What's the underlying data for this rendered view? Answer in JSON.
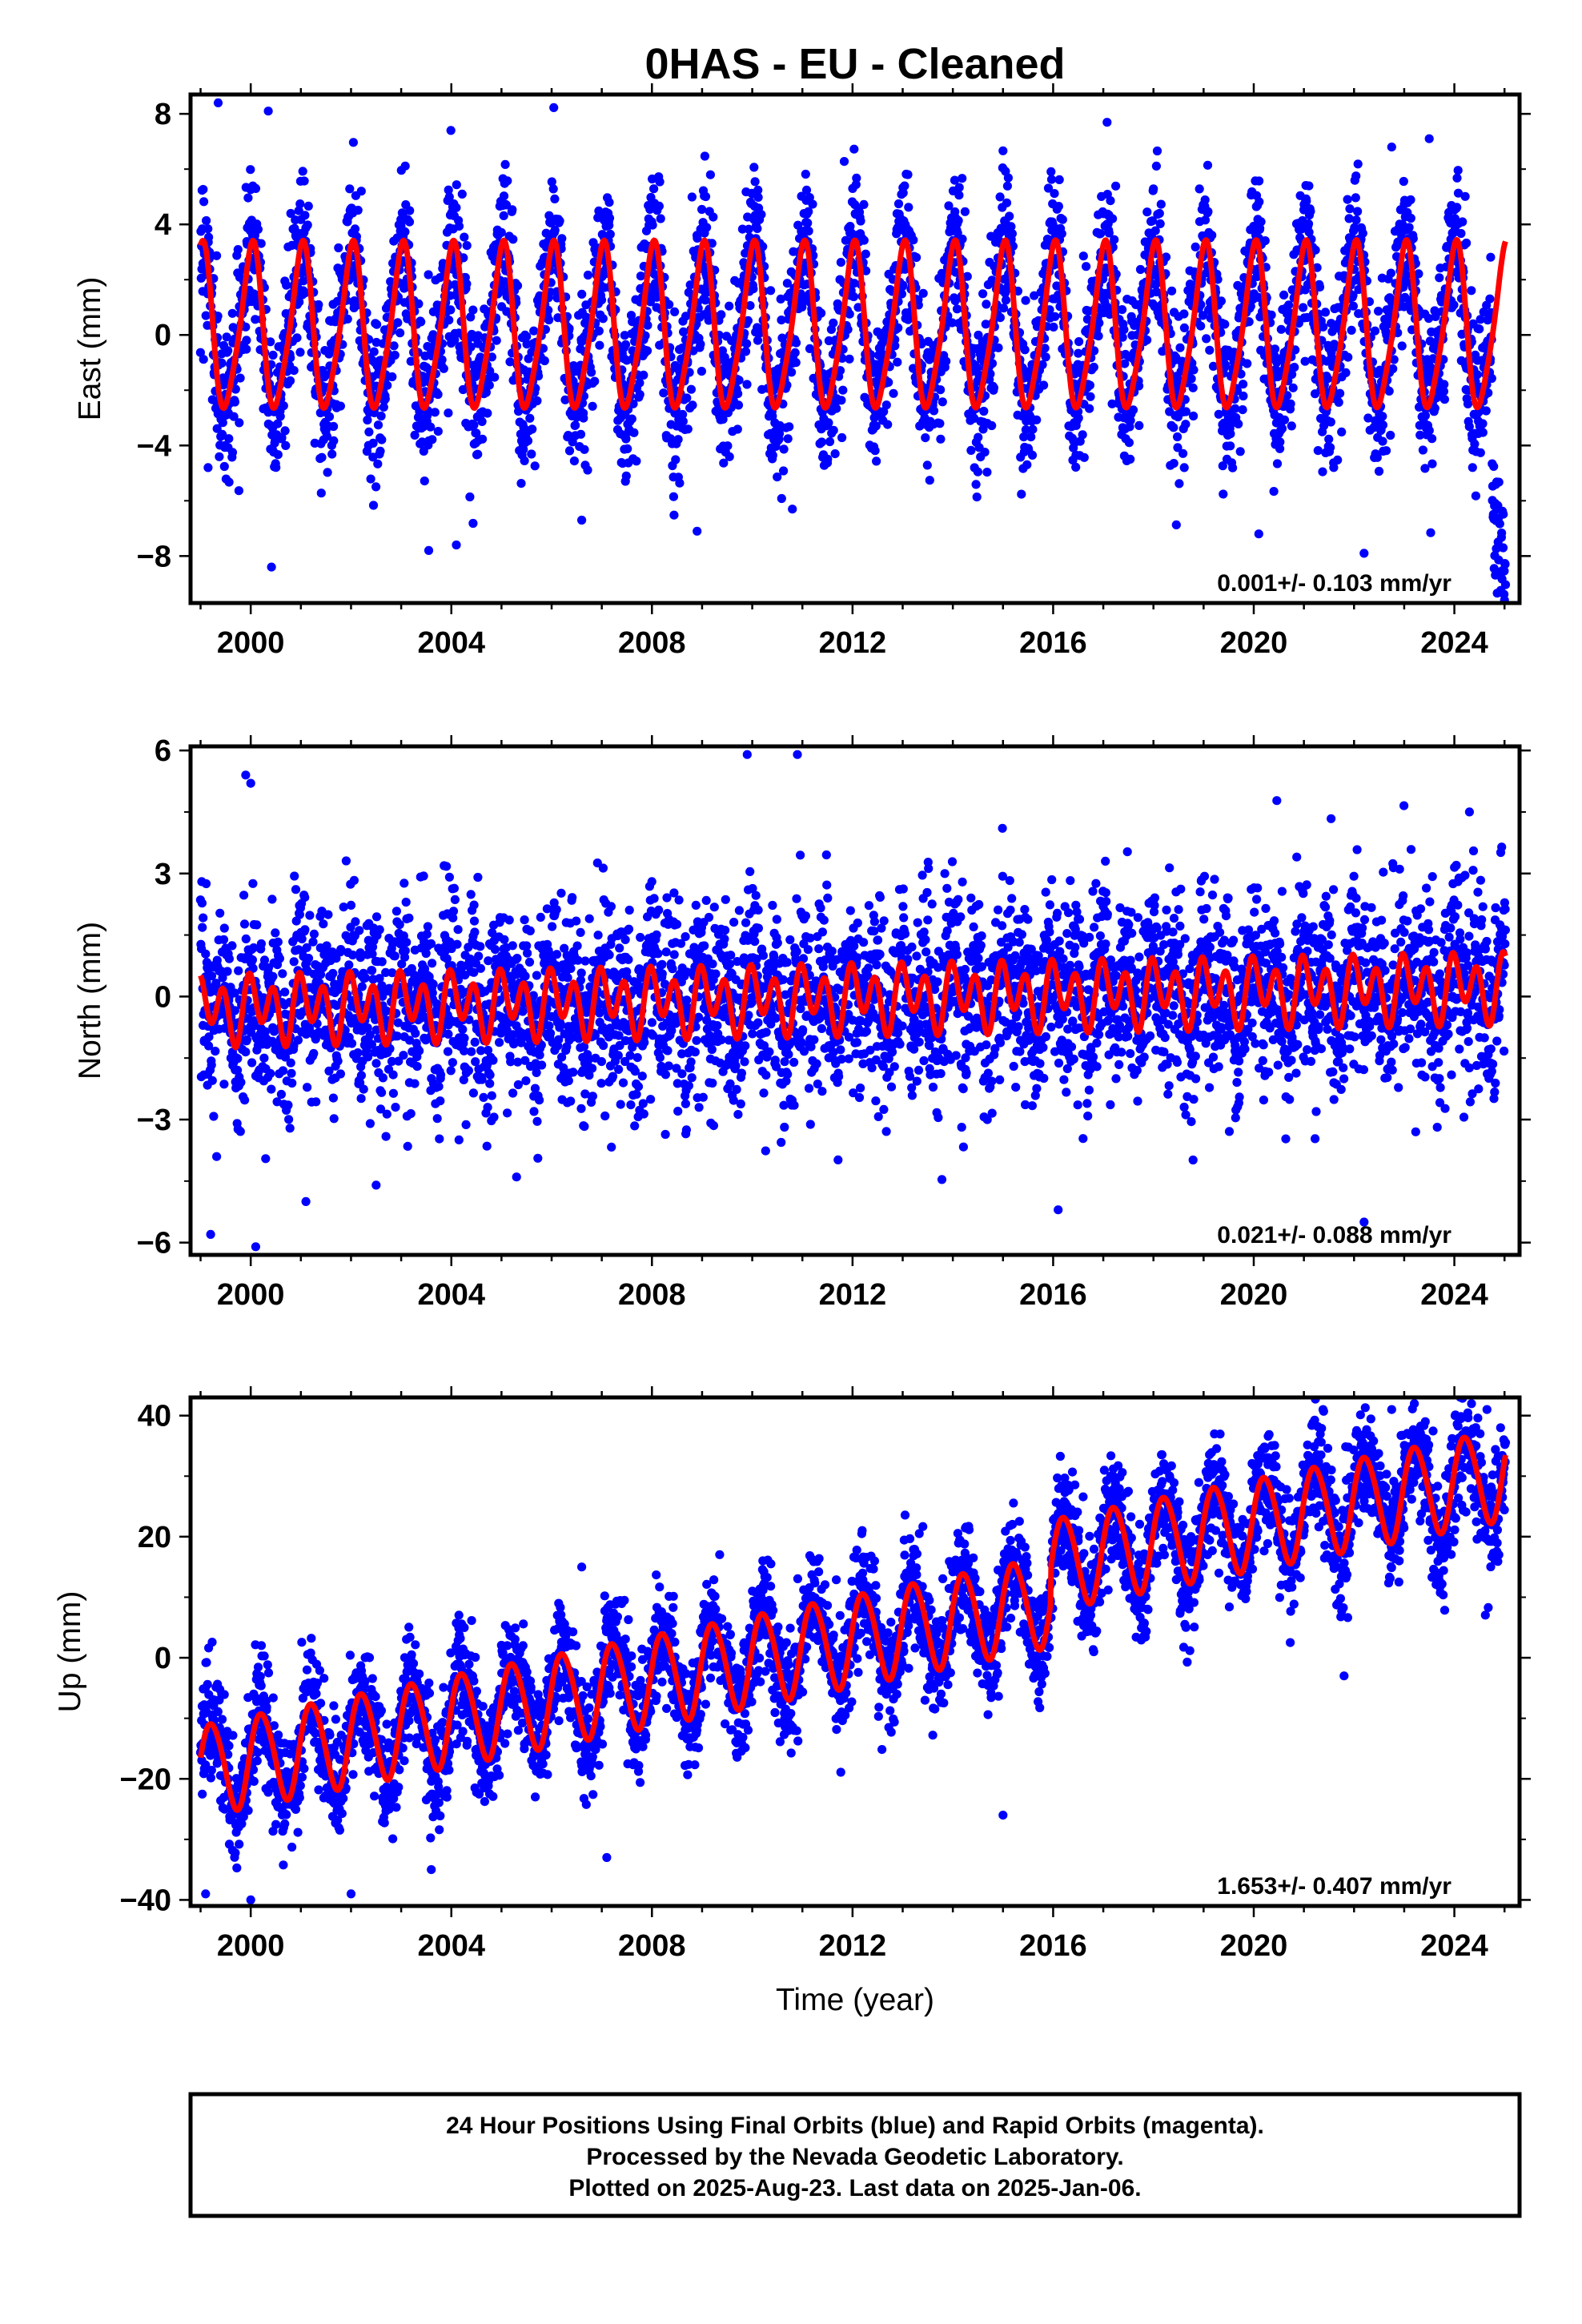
{
  "title": "0HAS  - EU - Cleaned",
  "x_axis_label": "Time (year)",
  "footer": {
    "line1": "24 Hour Positions Using Final Orbits (blue) and Rapid Orbits (magenta).",
    "line2": "Processed by the Nevada Geodetic Laboratory.",
    "line3": "Plotted on 2025-Aug-23. Last data on 2025-Jan-06."
  },
  "colors": {
    "observations": "#0000ff",
    "model": "#ff0000",
    "frame": "#000000"
  },
  "chart_data": [
    {
      "type": "scatter",
      "ylabel": "East (mm)",
      "xlim": [
        1998.8,
        2025.3
      ],
      "ylim": [
        -9.7,
        8.7
      ],
      "xticks": [
        2000,
        2004,
        2008,
        2012,
        2016,
        2020,
        2024
      ],
      "yticks": [
        -8,
        -4,
        0,
        4,
        8
      ],
      "tick_labels_y": [
        "−8",
        "−4",
        "0",
        "4",
        "8"
      ],
      "rate": "0.001+/- 0.103 mm/yr",
      "time_span": [
        1999.0,
        2025.02
      ],
      "model": {
        "offset": 0.2,
        "trend": 0.001,
        "annual_amp": 2.9,
        "annual_phase": 1.5,
        "semiannual_amp": 0.5,
        "semiannual_phase": 0.3
      },
      "end_segment": {
        "start": 2024.75,
        "end": 2025.02,
        "from": -6.0,
        "to": -8.8
      },
      "scatter_sd": 1.4,
      "outliers": [
        [
          1999.35,
          8.4
        ],
        [
          2000.35,
          8.1
        ],
        [
          1999.15,
          -4.8
        ],
        [
          2003.55,
          -7.8
        ],
        [
          2004.1,
          -7.6
        ],
        [
          2006.6,
          -6.7
        ],
        [
          2008.9,
          -7.1
        ],
        [
          2010.8,
          -6.3
        ],
        [
          2020.1,
          -7.2
        ],
        [
          2022.2,
          -7.9
        ],
        [
          2025.0,
          -9.6
        ],
        [
          2023.5,
          7.1
        ],
        [
          2022.75,
          6.8
        ]
      ]
    },
    {
      "type": "scatter",
      "ylabel": "North (mm)",
      "xlim": [
        1998.8,
        2025.3
      ],
      "ylim": [
        -6.3,
        6.1
      ],
      "xticks": [
        2000,
        2004,
        2008,
        2012,
        2016,
        2020,
        2024
      ],
      "yticks": [
        -6,
        -3,
        0,
        3,
        6
      ],
      "tick_labels_y": [
        "−6",
        "−3",
        "0",
        "3",
        "6"
      ],
      "rate": "0.021+/- 0.088 mm/yr",
      "time_span": [
        1999.0,
        2025.02
      ],
      "model": {
        "offset": -0.3,
        "trend": 0.021,
        "annual_amp": 0.35,
        "annual_phase": 0.8,
        "semiannual_amp": 0.65,
        "semiannual_phase": 2.1
      },
      "scatter_sd": 1.1,
      "outliers": [
        [
          1999.9,
          5.4
        ],
        [
          2000.0,
          5.2
        ],
        [
          2009.9,
          5.9
        ],
        [
          2010.9,
          5.9
        ],
        [
          2000.1,
          -6.1
        ],
        [
          1999.2,
          -5.8
        ],
        [
          2016.1,
          -5.2
        ],
        [
          2022.2,
          -5.5
        ],
        [
          2005.3,
          -4.4
        ],
        [
          2001.1,
          -5.0
        ],
        [
          2002.5,
          -4.6
        ],
        [
          2024.3,
          4.5
        ]
      ]
    },
    {
      "type": "scatter",
      "ylabel": "Up (mm)",
      "xlim": [
        1998.8,
        2025.3
      ],
      "ylim": [
        -41,
        43
      ],
      "xticks": [
        2000,
        2004,
        2008,
        2012,
        2016,
        2020,
        2024
      ],
      "yticks": [
        -40,
        -20,
        0,
        20,
        40
      ],
      "tick_labels_y": [
        "−40",
        "−20",
        "0",
        "20",
        "40"
      ],
      "rate": "1.653+/- 0.407 mm/yr",
      "time_span": [
        1999.0,
        2025.02
      ],
      "model": {
        "offset": -18.5,
        "trend": 1.653,
        "annual_amp": 7.5,
        "annual_phase": 0.2,
        "semiannual_amp": 0.6,
        "semiannual_phase": 1.0
      },
      "step": {
        "at": 2015.95,
        "size": 6.0
      },
      "scatter_sd": 4.6,
      "outliers": [
        [
          1999.1,
          -39
        ],
        [
          2000.0,
          -40
        ],
        [
          2002.0,
          -39
        ],
        [
          2006.6,
          15
        ],
        [
          2022.75,
          41
        ],
        [
          2024.65,
          41
        ],
        [
          2015.0,
          -26
        ],
        [
          2003.6,
          -35
        ],
        [
          2007.1,
          -33
        ],
        [
          2021.8,
          -3
        ]
      ]
    }
  ]
}
